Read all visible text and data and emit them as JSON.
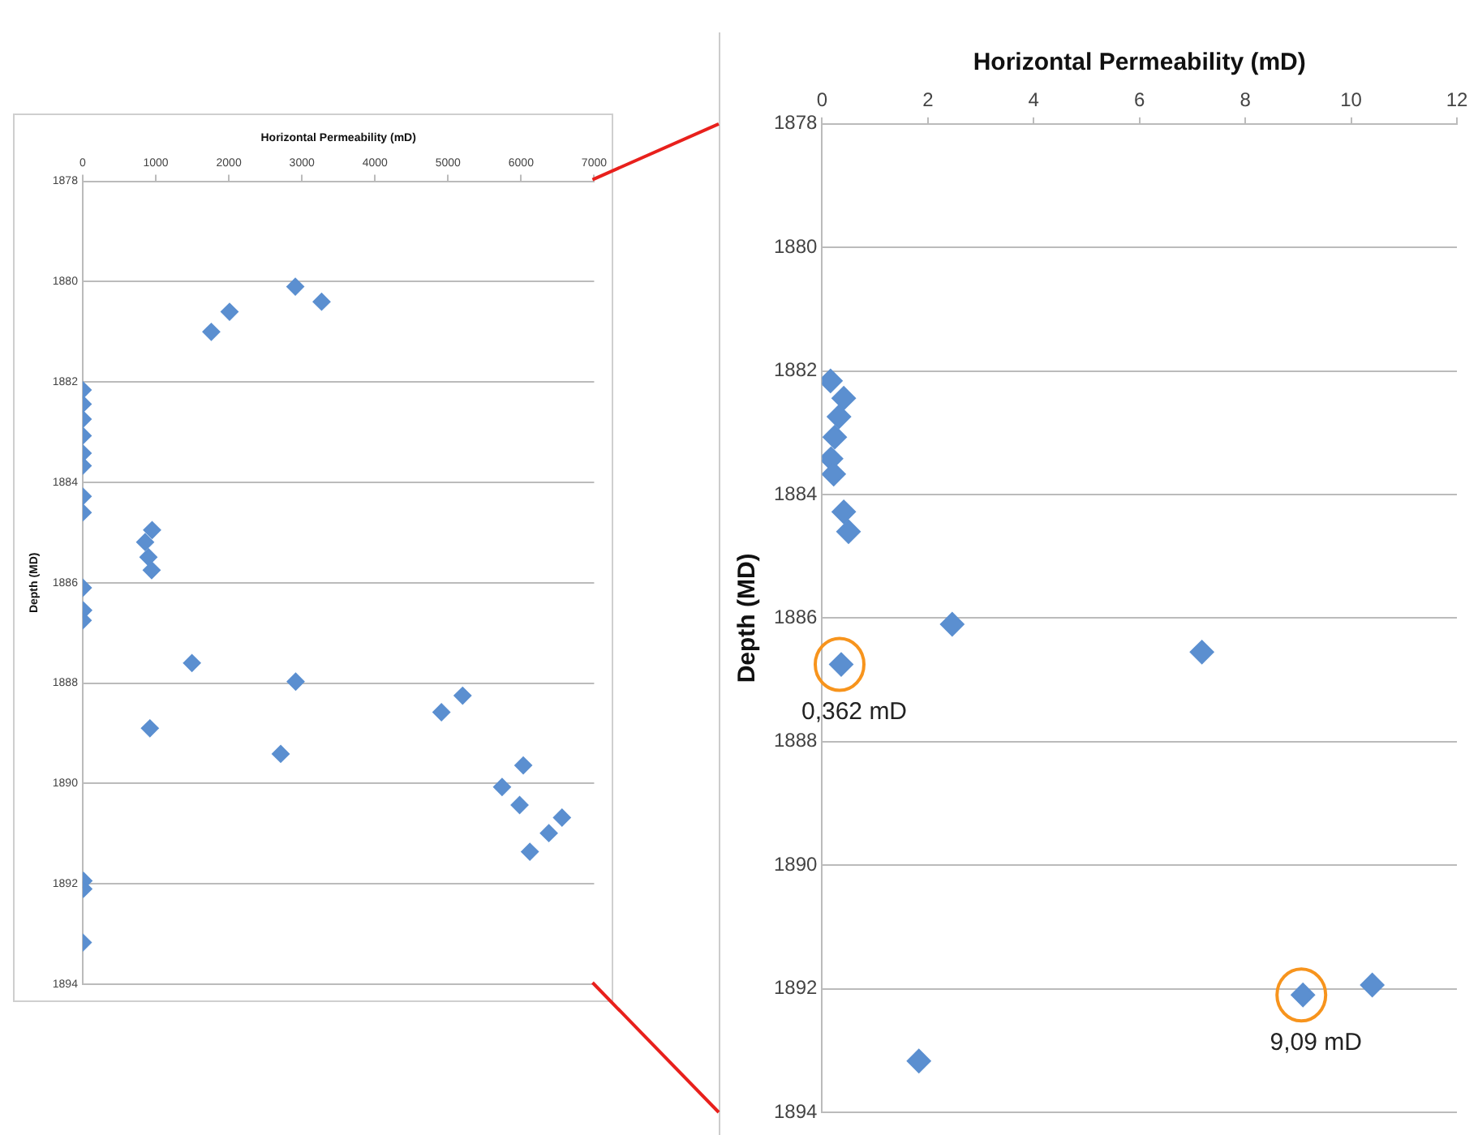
{
  "chart_data": [
    {
      "type": "scatter",
      "xlabel": "Horizontal Permeability (mD)",
      "ylabel": "Depth (MD)",
      "x": [
        2910,
        3270,
        2010,
        1760,
        0.16,
        0.41,
        0.32,
        0.24,
        0.17,
        0.22,
        0.41,
        0.5,
        950,
        855,
        900,
        944,
        2.46,
        7.18,
        0.362,
        1495,
        2915,
        4910,
        5200,
        920,
        2710,
        5740,
        6030,
        5980,
        6560,
        6380,
        6120,
        10.4,
        9.09,
        1.83
      ],
      "values": [
        1880.1,
        1880.4,
        1880.6,
        1881.0,
        1882.16,
        1882.44,
        1882.74,
        1883.07,
        1883.42,
        1883.67,
        1884.28,
        1884.6,
        1884.95,
        1885.19,
        1885.49,
        1885.75,
        1886.1,
        1886.55,
        1886.75,
        1887.6,
        1887.97,
        1888.58,
        1888.25,
        1888.9,
        1889.41,
        1890.07,
        1889.64,
        1890.43,
        1890.68,
        1890.99,
        1891.36,
        1891.94,
        1892.1,
        1893.17
      ],
      "color": "#5b8fd0",
      "marker": "diamond",
      "grid": "y",
      "xlim": [
        0,
        7000
      ],
      "xticks": [
        0,
        1000,
        2000,
        3000,
        4000,
        5000,
        6000,
        7000
      ],
      "ylim": [
        1894,
        1878
      ],
      "yticks": [
        1878,
        1880,
        1882,
        1884,
        1886,
        1888,
        1890,
        1892,
        1894
      ]
    },
    {
      "type": "scatter",
      "xlabel": "Horizontal Permeability (mD)",
      "ylabel": "Depth (MD)",
      "x": [
        0.16,
        0.41,
        0.32,
        0.24,
        0.17,
        0.22,
        0.41,
        0.5,
        2.46,
        7.18,
        0.362,
        10.4,
        9.09,
        1.83
      ],
      "values": [
        1882.16,
        1882.44,
        1882.74,
        1883.07,
        1883.42,
        1883.67,
        1884.28,
        1884.6,
        1886.1,
        1886.55,
        1886.75,
        1891.94,
        1892.1,
        1893.17
      ],
      "color": "#5b8fd0",
      "marker": "diamond",
      "grid": "y",
      "xlim": [
        0,
        12
      ],
      "xticks": [
        0,
        2,
        4,
        6,
        8,
        10,
        12
      ],
      "ylim": [
        1894,
        1878
      ],
      "yticks": [
        1878,
        1880,
        1882,
        1884,
        1886,
        1888,
        1890,
        1892,
        1894
      ],
      "annotations": [
        {
          "text": "0,362 mD",
          "x": 0.362,
          "y": 1886.75
        },
        {
          "text": "9,09 mD",
          "x": 9.09,
          "y": 1892.1
        }
      ]
    }
  ]
}
